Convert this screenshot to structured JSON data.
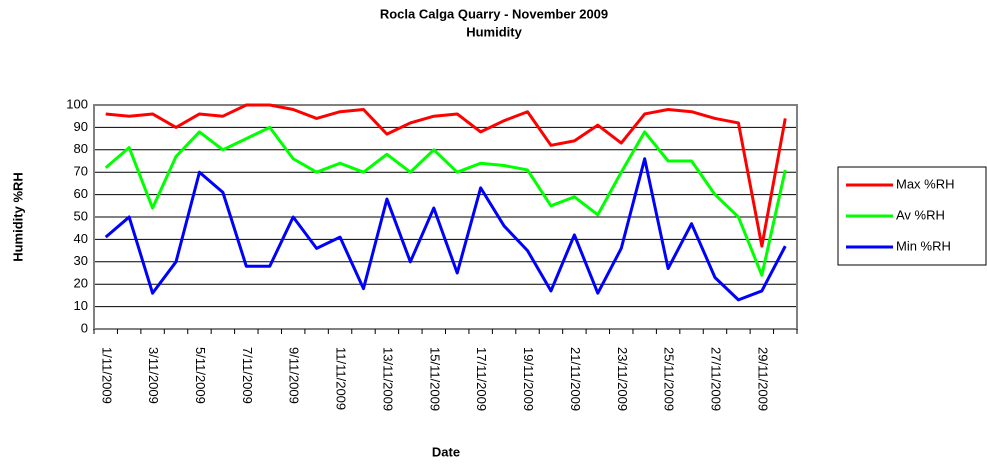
{
  "chart_data": {
    "type": "line",
    "title": "Rocla Calga Quarry - November 2009",
    "subtitle": "Humidity",
    "x_label": "Date",
    "y_label": "Humidity %RH",
    "categories": [
      "1/11/2009",
      null,
      "3/11/2009",
      null,
      "5/11/2009",
      null,
      "7/11/2009",
      null,
      "9/11/2009",
      null,
      "11/11/2009",
      null,
      "13/11/2009",
      null,
      "15/11/2009",
      null,
      "17/11/2009",
      null,
      "19/11/2009",
      null,
      "21/11/2009",
      null,
      "23/11/2009",
      null,
      "25/11/2009",
      null,
      "27/11/2009",
      null,
      "29/11/2009",
      null
    ],
    "series": [
      {
        "name": "Max %RH",
        "color": "#ff0000",
        "values": [
          96,
          95,
          96,
          90,
          96,
          95,
          100,
          100,
          98,
          94,
          97,
          98,
          87,
          92,
          95,
          96,
          88,
          93,
          97,
          82,
          84,
          91,
          83,
          96,
          98,
          97,
          94,
          92,
          37,
          94
        ]
      },
      {
        "name": "Av %RH",
        "color": "#00ff00",
        "values": [
          72,
          81,
          54,
          77,
          88,
          80,
          85,
          90,
          76,
          70,
          74,
          70,
          78,
          70,
          80,
          70,
          74,
          73,
          71,
          55,
          59,
          51,
          70,
          88,
          75,
          75,
          60,
          50,
          24,
          71
        ]
      },
      {
        "name": "Min %RH",
        "color": "#0000ff",
        "values": [
          41,
          50,
          16,
          30,
          70,
          61,
          28,
          28,
          50,
          36,
          41,
          18,
          58,
          30,
          54,
          25,
          63,
          46,
          35,
          17,
          42,
          16,
          36,
          76,
          27,
          47,
          23,
          13,
          17,
          37
        ]
      }
    ],
    "ylim": [
      0,
      100
    ],
    "yticks": [
      0,
      10,
      20,
      30,
      40,
      50,
      60,
      70,
      80,
      90,
      100
    ],
    "grid": true,
    "legend": "right"
  }
}
